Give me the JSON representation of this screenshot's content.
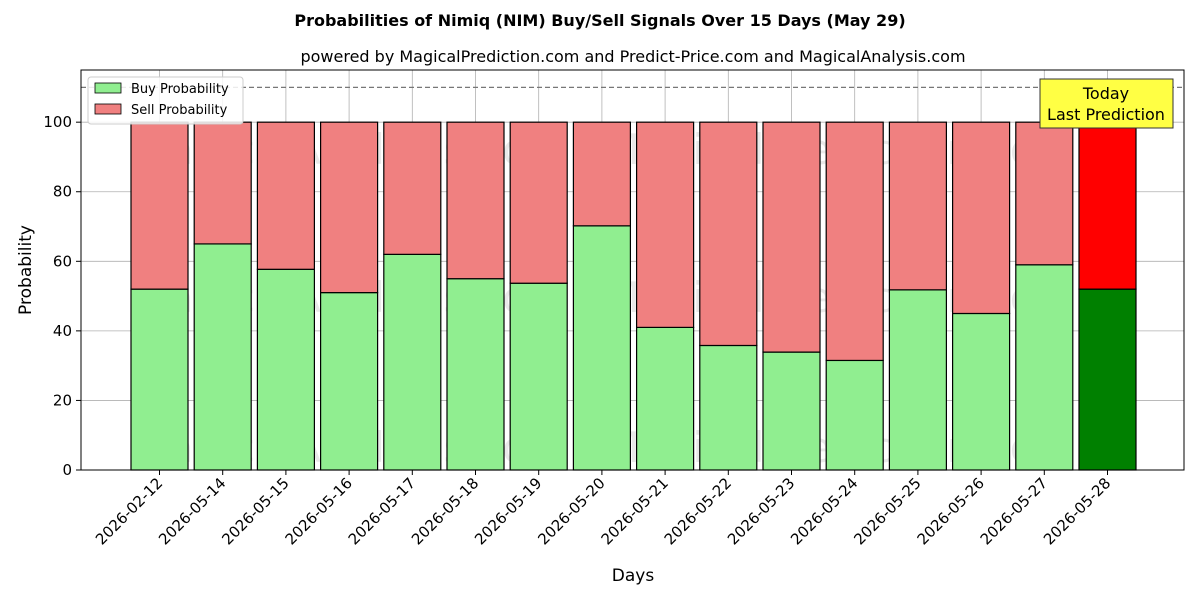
{
  "chart_data": {
    "type": "bar",
    "stacked": true,
    "title": "Probabilities of Nimiq (NIM) Buy/Sell Signals Over 15 Days (May 29)",
    "subtitle": "powered by MagicalPrediction.com and Predict-Price.com and MagicalAnalysis.com",
    "xlabel": "Days",
    "ylabel": "Probability",
    "ylim": [
      0,
      115
    ],
    "yticks": [
      0,
      20,
      40,
      60,
      80,
      100
    ],
    "grid": true,
    "legend_position": "top-left",
    "reference_line": 110,
    "categories": [
      "2026-02-12",
      "2026-05-14",
      "2026-05-15",
      "2026-05-16",
      "2026-05-17",
      "2026-05-18",
      "2026-05-19",
      "2026-05-20",
      "2026-05-21",
      "2026-05-22",
      "2026-05-23",
      "2026-05-24",
      "2026-05-25",
      "2026-05-26",
      "2026-05-27",
      "2026-05-28"
    ],
    "series": [
      {
        "name": "Buy Probability",
        "color": "#90ee90",
        "highlight_color": "#008000",
        "values": [
          52,
          65,
          57.7,
          51,
          62,
          55,
          53.7,
          70.2,
          41,
          35.8,
          33.9,
          31.5,
          51.8,
          45,
          59,
          52
        ]
      },
      {
        "name": "Sell Probability",
        "color": "#f08080",
        "highlight_color": "#ff0000",
        "values": [
          48,
          35,
          42.3,
          49,
          38,
          45,
          46.3,
          29.8,
          59,
          64.2,
          66.1,
          68.5,
          48.2,
          55,
          41,
          48
        ]
      }
    ],
    "highlight_index": 15,
    "annotation": {
      "lines": [
        "Today",
        "Last Prediction"
      ],
      "background": "#ffff44"
    },
    "watermarks": [
      "MagicalAnalysis.com",
      "MagicalPrediction.com"
    ]
  }
}
